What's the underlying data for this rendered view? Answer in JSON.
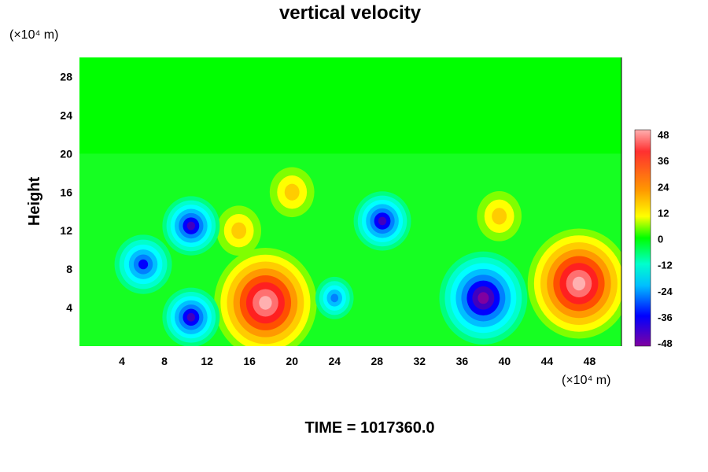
{
  "chart_data": {
    "type": "heatmap",
    "title": "vertical velocity",
    "ylabel": "Height",
    "y_unit": "(×10⁴ m)",
    "x_unit": "(×10⁴ m)",
    "xlim": [
      0,
      51
    ],
    "ylim": [
      0,
      30
    ],
    "x_ticks": [
      "4",
      "8",
      "12",
      "16",
      "20",
      "24",
      "28",
      "32",
      "36",
      "40",
      "44",
      "48"
    ],
    "y_ticks": [
      "4",
      "8",
      "12",
      "16",
      "20",
      "24",
      "28"
    ],
    "colorbar": {
      "ticks": [
        "48",
        "36",
        "24",
        "12",
        "0",
        "-12",
        "-24",
        "-36",
        "-48"
      ],
      "range": [
        -48,
        48
      ]
    },
    "features": [
      {
        "kind": "updraft",
        "x": 17.5,
        "y": 4.5,
        "value": 45
      },
      {
        "kind": "updraft",
        "x": 47.0,
        "y": 6.5,
        "value": 48
      },
      {
        "kind": "updraft",
        "x": 20.0,
        "y": 16.0,
        "value": 20
      },
      {
        "kind": "updraft",
        "x": 39.5,
        "y": 13.5,
        "value": 18
      },
      {
        "kind": "updraft",
        "x": 15.0,
        "y": 12.0,
        "value": 20
      },
      {
        "kind": "downdraft",
        "x": 38.0,
        "y": 5.0,
        "value": -48
      },
      {
        "kind": "downdraft",
        "x": 10.5,
        "y": 3.0,
        "value": -40
      },
      {
        "kind": "downdraft",
        "x": 6.0,
        "y": 8.5,
        "value": -36
      },
      {
        "kind": "downdraft",
        "x": 24.0,
        "y": 5.0,
        "value": -30
      },
      {
        "kind": "downdraft",
        "x": 28.5,
        "y": 13.0,
        "value": -40
      },
      {
        "kind": "downdraft",
        "x": 10.5,
        "y": 12.5,
        "value": -40
      }
    ]
  },
  "footer": {
    "time_label": "TIME = 1017360.0"
  },
  "colors": {
    "background_field": "#00ff00",
    "max": "#ffb0b0",
    "min": "#8000a0"
  }
}
